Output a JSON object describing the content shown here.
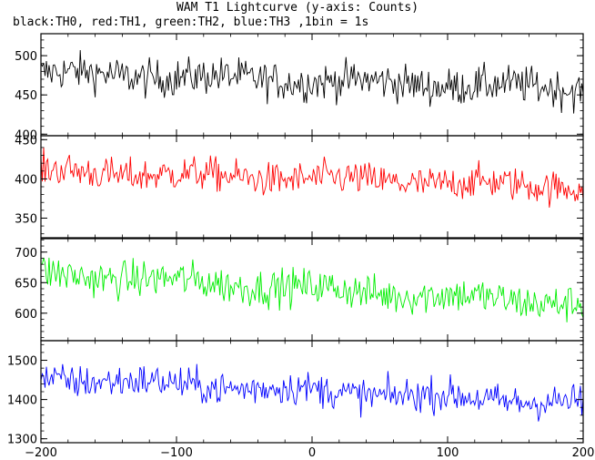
{
  "chart_data": {
    "type": "line",
    "title": "WAM T1 Lightcurve (y-axis: Counts)",
    "subtitle": "black:TH0, red:TH1, green:TH2, blue:TH3 ,1bin = 1s",
    "xlim": [
      -200,
      200
    ],
    "x_ticks": [
      -200,
      -100,
      0,
      100,
      200
    ],
    "x_tick_labels": [
      "−200",
      "−100",
      "0",
      "100",
      "200"
    ],
    "bin_width": 1,
    "panels": [
      {
        "name": "TH0",
        "color": "#000000",
        "ylim": [
          398,
          528
        ],
        "yticks": [
          400,
          450,
          500
        ],
        "start_level": 478,
        "end_level": 458,
        "noise": 22
      },
      {
        "name": "TH1",
        "color": "#ff0000",
        "ylim": [
          325,
          455
        ],
        "yticks": [
          350,
          400,
          450
        ],
        "start_level": 410,
        "end_level": 390,
        "noise": 20
      },
      {
        "name": "TH2",
        "color": "#00ee00",
        "ylim": [
          555,
          722
        ],
        "yticks": [
          600,
          650,
          700
        ],
        "start_level": 665,
        "end_level": 615,
        "noise": 28
      },
      {
        "name": "TH3",
        "color": "#0000ff",
        "ylim": [
          1290,
          1550
        ],
        "yticks": [
          1300,
          1400,
          1500
        ],
        "start_level": 1455,
        "end_level": 1390,
        "noise": 40
      }
    ]
  }
}
